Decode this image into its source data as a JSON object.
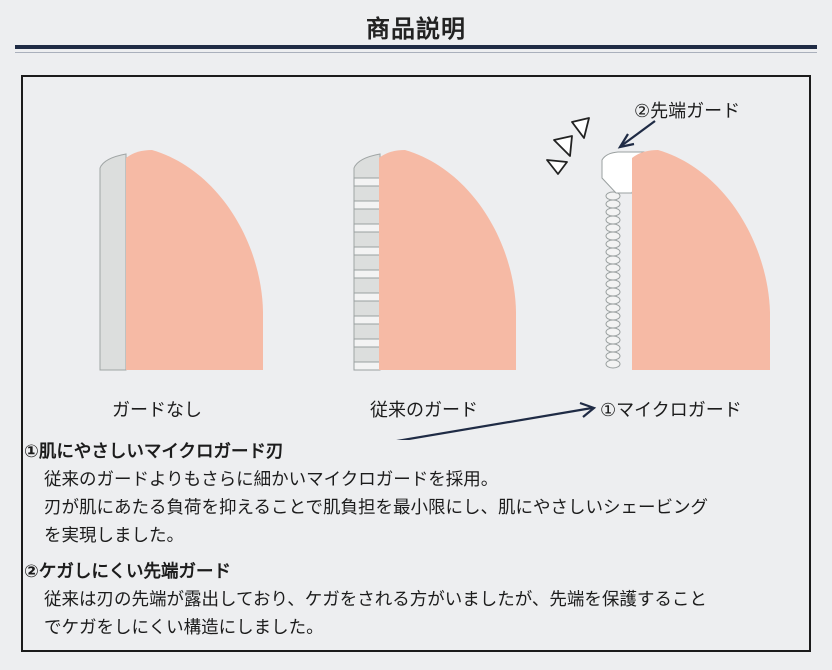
{
  "header": {
    "title": "商品説明"
  },
  "diagram": {
    "blades": [
      {
        "label": "ガードなし"
      },
      {
        "label": "従来のガード"
      },
      {
        "label": "①マイクロガード"
      }
    ],
    "tip_guard_label": "②先端ガード",
    "colors": {
      "blade": "#f6baa5",
      "guard": "#dcdedd",
      "guard_stroke": "#9aa0a0",
      "arrow": "#1f2b45",
      "rule": "#1f2b45"
    }
  },
  "features": [
    {
      "heading": "①肌にやさしいマイクロガード刃",
      "lines": [
        "従来のガードよりもさらに細かいマイクロガードを採用。",
        "刃が肌にあたる負荷を抑えることで肌負担を最小限にし、肌にやさしいシェービング",
        "を実現しました。"
      ]
    },
    {
      "heading": "②ケガしにくい先端ガード",
      "lines": [
        "従来は刃の先端が露出しており、ケガをされる方がいましたが、先端を保護すること",
        "でケガをしにくい構造にしました。"
      ]
    }
  ]
}
